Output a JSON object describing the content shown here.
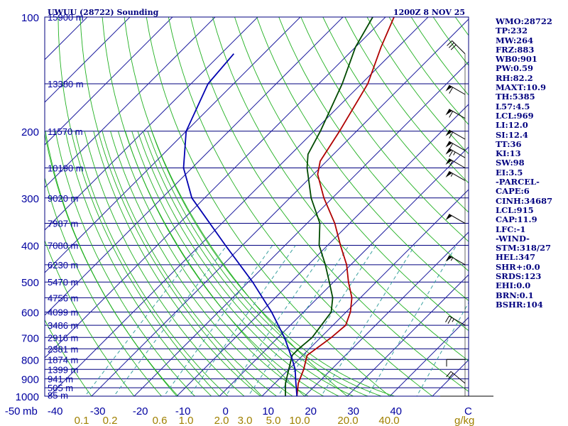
{
  "chart_data": {
    "type": "line",
    "title": "UWUU (28722) Sounding",
    "time": "1200Z  8 NOV 25",
    "x_unit": "C",
    "y_unit": "mb",
    "mixing_unit": "g/kg",
    "pressure_ticks": [
      100,
      200,
      300,
      400,
      500,
      600,
      700,
      800,
      900,
      1000
    ],
    "temp_ticks": [
      -50,
      -40,
      -30,
      -20,
      -10,
      0,
      10,
      20,
      30,
      40
    ],
    "mixing_ratio_labels": [
      "0.1",
      "0.2",
      "0.6",
      "1.0",
      "2.0",
      "3.0",
      "5.0",
      "10.0",
      "20.0",
      "40.0"
    ],
    "height_labels": [
      {
        "p": 100,
        "label": "15900 m"
      },
      {
        "p": 150,
        "label": "13380 m"
      },
      {
        "p": 200,
        "label": "11570 m"
      },
      {
        "p": 250,
        "label": "10190 m"
      },
      {
        "p": 300,
        "label": "9020 m"
      },
      {
        "p": 350,
        "label": "7987 m"
      },
      {
        "p": 400,
        "label": "7080 m"
      },
      {
        "p": 450,
        "label": "6230 m"
      },
      {
        "p": 500,
        "label": "5470 m"
      },
      {
        "p": 550,
        "label": "4756 m"
      },
      {
        "p": 600,
        "label": "4099 m"
      },
      {
        "p": 650,
        "label": "3486 m"
      },
      {
        "p": 700,
        "label": "2916 m"
      },
      {
        "p": 750,
        "label": "2381 m"
      },
      {
        "p": 800,
        "label": "1874 m"
      },
      {
        "p": 850,
        "label": "1399 m"
      },
      {
        "p": 900,
        "label": "941 m"
      },
      {
        "p": 950,
        "label": "505 m"
      },
      {
        "p": 993,
        "label": "85 m"
      }
    ],
    "series": [
      {
        "name": "Temperature",
        "color": "#b00000",
        "points": [
          {
            "p": 1000,
            "t": 8.2
          },
          {
            "p": 925,
            "t": 5.5
          },
          {
            "p": 850,
            "t": 3.5
          },
          {
            "p": 780,
            "t": 1.0
          },
          {
            "p": 700,
            "t": 2.5
          },
          {
            "p": 650,
            "t": 3.0
          },
          {
            "p": 600,
            "t": 1.0
          },
          {
            "p": 550,
            "t": -2.0
          },
          {
            "p": 500,
            "t": -6.5
          },
          {
            "p": 450,
            "t": -11.0
          },
          {
            "p": 400,
            "t": -17.0
          },
          {
            "p": 350,
            "t": -23.5
          },
          {
            "p": 300,
            "t": -32.0
          },
          {
            "p": 260,
            "t": -39.0
          },
          {
            "p": 240,
            "t": -41.5
          },
          {
            "p": 200,
            "t": -44.0
          },
          {
            "p": 150,
            "t": -48.5
          },
          {
            "p": 120,
            "t": -54.0
          },
          {
            "p": 100,
            "t": -58.0
          }
        ]
      },
      {
        "name": "Dewpoint",
        "color": "#004a00",
        "points": [
          {
            "p": 1000,
            "t": 5.5
          },
          {
            "p": 925,
            "t": 2.5
          },
          {
            "p": 850,
            "t": 0.0
          },
          {
            "p": 780,
            "t": -2.5
          },
          {
            "p": 750,
            "t": -2.5
          },
          {
            "p": 700,
            "t": -2.0
          },
          {
            "p": 600,
            "t": -3.5
          },
          {
            "p": 550,
            "t": -6.5
          },
          {
            "p": 500,
            "t": -11.0
          },
          {
            "p": 450,
            "t": -16.0
          },
          {
            "p": 400,
            "t": -22.0
          },
          {
            "p": 350,
            "t": -27.0
          },
          {
            "p": 300,
            "t": -35.0
          },
          {
            "p": 250,
            "t": -43.0
          },
          {
            "p": 230,
            "t": -46.0
          },
          {
            "p": 200,
            "t": -48.5
          },
          {
            "p": 150,
            "t": -54.5
          },
          {
            "p": 120,
            "t": -60.0
          },
          {
            "p": 100,
            "t": -63.0
          }
        ]
      },
      {
        "name": "Parcel",
        "color": "#0000b0",
        "points": [
          {
            "p": 1000,
            "t": 8.2
          },
          {
            "p": 915,
            "t": 4.5
          },
          {
            "p": 850,
            "t": 1.5
          },
          {
            "p": 800,
            "t": -1.5
          },
          {
            "p": 700,
            "t": -8.5
          },
          {
            "p": 600,
            "t": -17.5
          },
          {
            "p": 500,
            "t": -29.0
          },
          {
            "p": 400,
            "t": -44.0
          },
          {
            "p": 300,
            "t": -63.0
          },
          {
            "p": 250,
            "t": -72.0
          },
          {
            "p": 200,
            "t": -80.0
          },
          {
            "p": 150,
            "t": -86.0
          },
          {
            "p": 125,
            "t": -87.0
          }
        ]
      }
    ],
    "wind_barbs": [
      {
        "p": 125,
        "dir": 315,
        "kt": 30
      },
      {
        "p": 160,
        "dir": 300,
        "kt": 60
      },
      {
        "p": 185,
        "dir": 300,
        "kt": 60
      },
      {
        "p": 210,
        "dir": 300,
        "kt": 60
      },
      {
        "p": 225,
        "dir": 300,
        "kt": 60
      },
      {
        "p": 235,
        "dir": 300,
        "kt": 65
      },
      {
        "p": 250,
        "dir": 300,
        "kt": 60
      },
      {
        "p": 270,
        "dir": 300,
        "kt": 55
      },
      {
        "p": 350,
        "dir": 300,
        "kt": 50
      },
      {
        "p": 450,
        "dir": 300,
        "kt": 55
      },
      {
        "p": 650,
        "dir": 300,
        "kt": 25
      },
      {
        "p": 800,
        "dir": 270,
        "kt": 10
      },
      {
        "p": 925,
        "dir": 310,
        "kt": 20
      }
    ]
  },
  "indices": [
    "WMO:28722",
    "TP:232",
    "MW:264",
    "FRZ:883",
    "WB0:901",
    "PW:0.59",
    "RH:82.2",
    "MAXT:10.9",
    "TH:5385",
    "L57:4.5",
    "LCL:969",
    "LI:12.0",
    "SI:12.4",
    "TT:36",
    "KI:13",
    "SW:98",
    "EI:3.5",
    "-PARCEL-",
    "CAPE:6",
    "CINH:34687",
    "LCL:915",
    "CAP:11.9",
    "LFC:-1",
    "-WIND-",
    "STM:318/27",
    "HEL:347",
    "SHR+:0.0",
    "SRDS:123",
    "EHI:0.0",
    "BRN:0.1",
    "BSHR:104"
  ],
  "colors": {
    "isobar": "#00007f",
    "isotherm": "#2020a0",
    "dry_adiabat": "#20b020",
    "moist_adiabat": "#20b020",
    "mixing_ratio": "#3aa0a0",
    "axis_text": "#0000a0",
    "mixing_text": "#a08000",
    "barb": "#000000"
  }
}
